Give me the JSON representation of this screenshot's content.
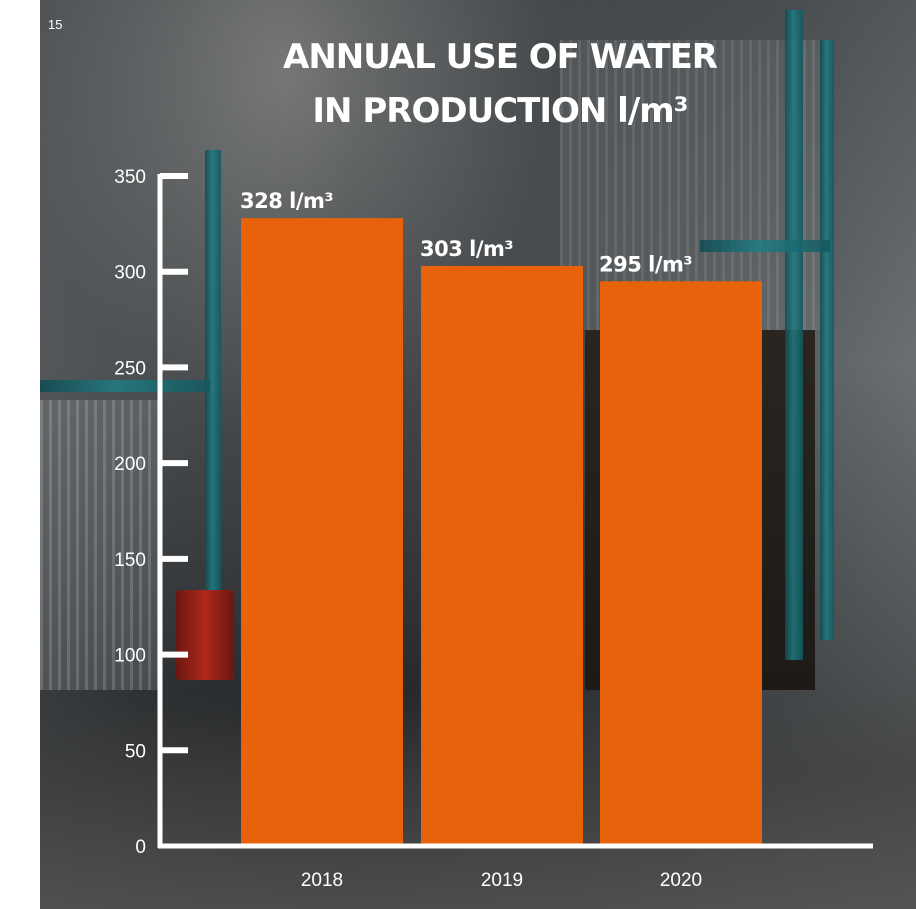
{
  "page_number": "15",
  "title_line1": "ANNUAL USE OF WATER",
  "title_line2": "IN PRODUCTION  l/m³",
  "colors": {
    "bar": "#e8620c",
    "axis": "#ffffff",
    "text": "#ffffff"
  },
  "chart_data": {
    "type": "bar",
    "title": "ANNUAL USE OF WATER IN PRODUCTION  l/m³",
    "categories": [
      "2018",
      "2019",
      "2020"
    ],
    "values": [
      328,
      303,
      295
    ],
    "data_labels": [
      "328 l/m³",
      "303 l/m³",
      "295 l/m³"
    ],
    "ylim": [
      0,
      350
    ],
    "y_ticks": [
      0,
      50,
      100,
      150,
      200,
      250,
      300,
      350
    ],
    "xlabel": "",
    "ylabel": "",
    "grid": false,
    "legend": "none"
  }
}
